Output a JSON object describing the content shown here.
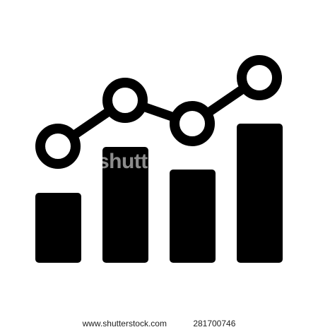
{
  "icon": {
    "name": "bar-chart-with-trend-line-icon",
    "color": "#000000",
    "background": "#ffffff"
  },
  "watermark": {
    "text": "shutterstock"
  },
  "footer": {
    "site": "www.shutterstock.com",
    "image_id": "281700746"
  }
}
